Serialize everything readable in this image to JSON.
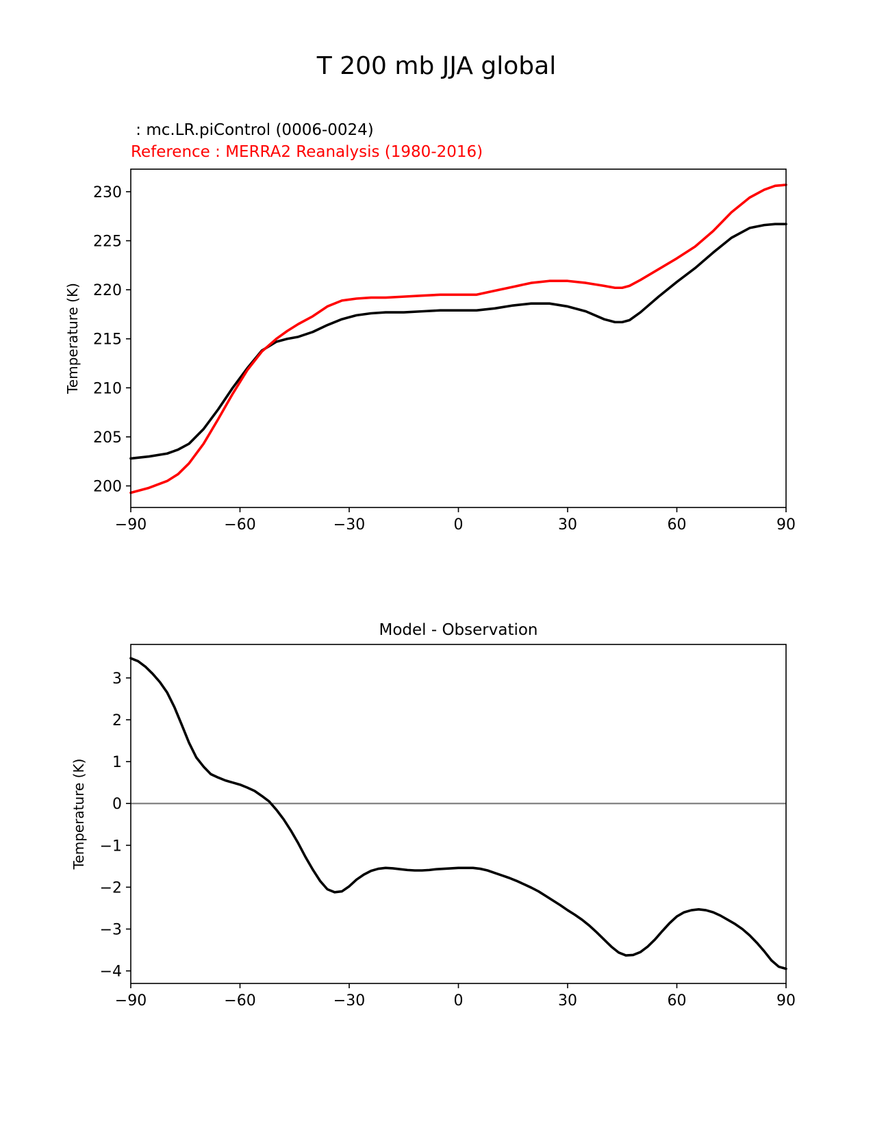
{
  "figure": {
    "title": "T 200 mb JJA global",
    "test_label": " : mc.LR.piControl (0006-0024)",
    "ref_label": "Reference : MERRA2 Reanalysis (1980-2016)"
  },
  "colors": {
    "test": "#000000",
    "reference": "#ff0000",
    "zero_line": "#808080",
    "axes": "#000000"
  },
  "chart_data": [
    {
      "type": "line",
      "title": "",
      "xlabel": "",
      "ylabel": "Temperature (K)",
      "xlim": [
        -90,
        90
      ],
      "ylim": [
        197.8,
        232.3
      ],
      "xticks": [
        -90,
        -60,
        -30,
        0,
        30,
        60,
        90
      ],
      "xtick_labels": [
        "−90",
        "−60",
        "−30",
        "0",
        "30",
        "60",
        "90"
      ],
      "yticks": [
        200,
        205,
        210,
        215,
        220,
        225,
        230
      ],
      "ytick_labels": [
        "200",
        "205",
        "210",
        "215",
        "220",
        "225",
        "230"
      ],
      "grid": false,
      "series": [
        {
          "name": "mc.LR.piControl (0006-0024)",
          "color": "#000000",
          "x": [
            -90,
            -85,
            -80,
            -77,
            -74,
            -70,
            -66,
            -62,
            -58,
            -54,
            -50,
            -47,
            -44,
            -40,
            -36,
            -32,
            -28,
            -24,
            -20,
            -15,
            -10,
            -5,
            0,
            5,
            10,
            15,
            20,
            25,
            30,
            35,
            40,
            43,
            45,
            47,
            50,
            55,
            60,
            65,
            70,
            75,
            80,
            84,
            87,
            90
          ],
          "y": [
            202.8,
            203.0,
            203.3,
            203.7,
            204.3,
            205.8,
            207.8,
            210.0,
            212.0,
            213.8,
            214.7,
            215.0,
            215.2,
            215.7,
            216.4,
            217.0,
            217.4,
            217.6,
            217.7,
            217.7,
            217.8,
            217.9,
            217.9,
            217.9,
            218.1,
            218.4,
            218.6,
            218.6,
            218.3,
            217.8,
            217.0,
            216.7,
            216.7,
            216.9,
            217.7,
            219.3,
            220.8,
            222.2,
            223.8,
            225.3,
            226.3,
            226.6,
            226.7,
            226.7
          ]
        },
        {
          "name": "Reference : MERRA2 Reanalysis (1980-2016)",
          "color": "#ff0000",
          "x": [
            -90,
            -85,
            -80,
            -77,
            -74,
            -70,
            -66,
            -62,
            -58,
            -54,
            -50,
            -47,
            -44,
            -40,
            -36,
            -32,
            -28,
            -24,
            -20,
            -15,
            -10,
            -5,
            0,
            5,
            10,
            15,
            20,
            25,
            30,
            35,
            40,
            43,
            45,
            47,
            50,
            55,
            60,
            65,
            70,
            75,
            80,
            84,
            87,
            90
          ],
          "y": [
            199.3,
            199.8,
            200.5,
            201.2,
            202.3,
            204.3,
            206.8,
            209.4,
            211.8,
            213.7,
            215.0,
            215.8,
            216.5,
            217.3,
            218.3,
            218.9,
            219.1,
            219.2,
            219.2,
            219.3,
            219.4,
            219.5,
            219.5,
            219.5,
            219.9,
            220.3,
            220.7,
            220.9,
            220.9,
            220.7,
            220.4,
            220.2,
            220.2,
            220.4,
            221.0,
            222.1,
            223.2,
            224.4,
            226.0,
            227.9,
            229.4,
            230.2,
            230.6,
            230.7
          ]
        }
      ]
    },
    {
      "type": "line",
      "title": "Model - Observation",
      "xlabel": "",
      "ylabel": "Temperature (K)",
      "xlim": [
        -90,
        90
      ],
      "ylim": [
        -4.3,
        3.8
      ],
      "xticks": [
        -90,
        -60,
        -30,
        0,
        30,
        60,
        90
      ],
      "xtick_labels": [
        "−90",
        "−60",
        "−30",
        "0",
        "30",
        "60",
        "90"
      ],
      "yticks": [
        -4,
        -3,
        -2,
        -1,
        0,
        1,
        2,
        3
      ],
      "ytick_labels": [
        "−4",
        "−3",
        "−2",
        "−1",
        "0",
        "1",
        "2",
        "3"
      ],
      "grid": false,
      "zero_line": 0,
      "series": [
        {
          "name": "Model - Observation",
          "color": "#000000",
          "x": [
            -90,
            -88,
            -86,
            -84,
            -82,
            -80,
            -78,
            -76,
            -74,
            -72,
            -70,
            -68,
            -66,
            -64,
            -62,
            -60,
            -58,
            -56,
            -54,
            -52,
            -50,
            -48,
            -46,
            -44,
            -42,
            -40,
            -38,
            -36,
            -34,
            -32,
            -30,
            -28,
            -26,
            -24,
            -22,
            -20,
            -18,
            -16,
            -14,
            -12,
            -10,
            -8,
            -6,
            -4,
            -2,
            0,
            2,
            4,
            6,
            8,
            10,
            12,
            14,
            16,
            18,
            20,
            22,
            24,
            26,
            28,
            30,
            32,
            34,
            36,
            38,
            40,
            42,
            44,
            46,
            48,
            50,
            52,
            54,
            56,
            58,
            60,
            62,
            64,
            66,
            68,
            70,
            72,
            74,
            76,
            78,
            80,
            82,
            84,
            86,
            88,
            90
          ],
          "y": [
            3.47,
            3.4,
            3.27,
            3.1,
            2.9,
            2.65,
            2.3,
            1.88,
            1.45,
            1.1,
            0.88,
            0.7,
            0.62,
            0.55,
            0.5,
            0.45,
            0.38,
            0.3,
            0.18,
            0.05,
            -0.15,
            -0.38,
            -0.65,
            -0.95,
            -1.28,
            -1.58,
            -1.85,
            -2.05,
            -2.12,
            -2.1,
            -1.98,
            -1.82,
            -1.7,
            -1.61,
            -1.56,
            -1.54,
            -1.55,
            -1.57,
            -1.59,
            -1.6,
            -1.6,
            -1.59,
            -1.57,
            -1.56,
            -1.55,
            -1.54,
            -1.54,
            -1.54,
            -1.56,
            -1.6,
            -1.66,
            -1.72,
            -1.78,
            -1.85,
            -1.93,
            -2.01,
            -2.1,
            -2.21,
            -2.32,
            -2.43,
            -2.55,
            -2.66,
            -2.78,
            -2.92,
            -3.08,
            -3.25,
            -3.42,
            -3.56,
            -3.63,
            -3.62,
            -3.55,
            -3.42,
            -3.25,
            -3.05,
            -2.86,
            -2.7,
            -2.6,
            -2.55,
            -2.53,
            -2.55,
            -2.6,
            -2.68,
            -2.78,
            -2.88,
            -3.0,
            -3.15,
            -3.33,
            -3.53,
            -3.75,
            -3.9,
            -3.95
          ]
        }
      ]
    }
  ]
}
